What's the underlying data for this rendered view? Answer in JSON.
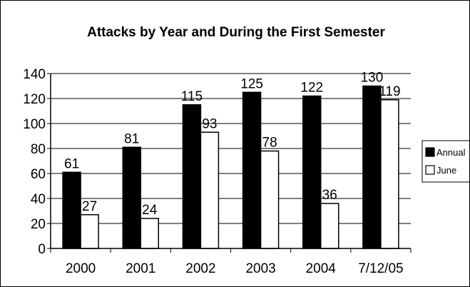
{
  "chart_data": {
    "type": "bar",
    "title": "Attacks by Year and During the First Semester",
    "xlabel": "",
    "ylabel": "",
    "categories": [
      "2000",
      "2001",
      "2002",
      "2003",
      "2004",
      "7/12/05"
    ],
    "series": [
      {
        "name": "Annual",
        "color": "#000000",
        "values": [
          61,
          81,
          115,
          125,
          122,
          130
        ]
      },
      {
        "name": "June",
        "color": "#ffffff",
        "values": [
          27,
          24,
          93,
          78,
          36,
          119
        ]
      }
    ],
    "ylim": [
      0,
      140
    ],
    "yticks": [
      0,
      20,
      40,
      60,
      80,
      100,
      120,
      140
    ],
    "grid": true,
    "legend": "right",
    "data_labels": true
  }
}
